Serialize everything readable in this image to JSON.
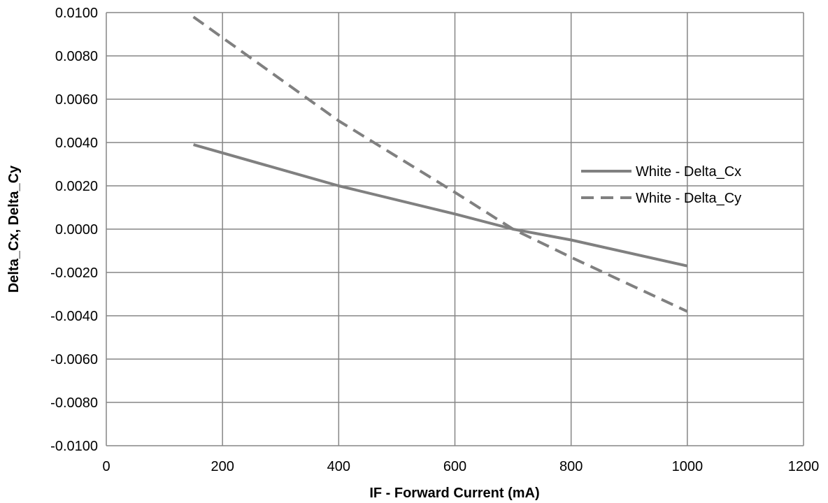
{
  "chart_data": {
    "type": "line",
    "title": "",
    "xlabel": "IF - Forward Current (mA)",
    "ylabel": "Delta_Cx, Delta_Cy",
    "xlim": [
      0,
      1200
    ],
    "ylim": [
      -0.01,
      0.01
    ],
    "x_ticks": [
      "0",
      "200",
      "400",
      "600",
      "800",
      "1000",
      "1200"
    ],
    "y_ticks": [
      "-0.0100",
      "-0.0080",
      "-0.0060",
      "-0.0040",
      "-0.0020",
      "0.0000",
      "0.0020",
      "0.0040",
      "0.0060",
      "0.0080",
      "0.0100"
    ],
    "grid": true,
    "legend_position": "right",
    "line_color": "#808080",
    "series": [
      {
        "name": "White - Delta_Cx",
        "style": "solid",
        "x": [
          150,
          400,
          600,
          700,
          800,
          1000
        ],
        "y": [
          0.0039,
          0.002,
          0.0007,
          0.0,
          -0.0005,
          -0.0017
        ]
      },
      {
        "name": "White - Delta_Cy",
        "style": "dashed",
        "x": [
          150,
          400,
          600,
          700,
          800,
          1000
        ],
        "y": [
          0.0098,
          0.005,
          0.0017,
          0.0,
          -0.0013,
          -0.0038
        ]
      }
    ]
  }
}
